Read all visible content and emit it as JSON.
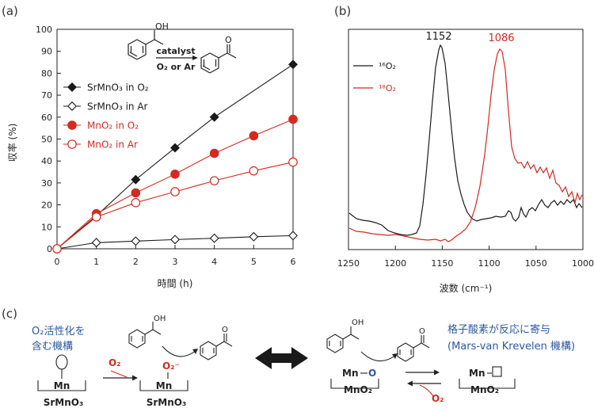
{
  "panel_labels": {
    "a": "(a)",
    "b": "(b)",
    "c": "(c)"
  },
  "colors": {
    "black": "#1a1a1a",
    "red": "#d42a20",
    "blue": "#2b57a6",
    "gray": "#7a7a7a"
  },
  "scheme_a": {
    "oh": "OH",
    "catalyst": "catalyst",
    "cond": "O₂ or Ar"
  },
  "scheme_c": {
    "left_caption": [
      "O₂活性化を",
      "含む機構"
    ],
    "right_caption": [
      "格子酸素が反応に寄与",
      "(Mars-van Krevelen 機構)"
    ],
    "mn": "Mn",
    "srmno3": "SrMnO₃",
    "mno2": "MnO₂",
    "o2": "O₂",
    "o2minus": "O₂⁻",
    "oh": "OH",
    "mn_o": "O"
  },
  "chart_data": [
    {
      "type": "line",
      "title": "",
      "xlabel": "時間 (h)",
      "ylabel": "収率 (%)",
      "xlim": [
        0,
        6
      ],
      "ylim": [
        0,
        100
      ],
      "x_ticks": [
        "0",
        "1",
        "2",
        "3",
        "4",
        "5",
        "6"
      ],
      "y_ticks": [
        "0",
        "10",
        "20",
        "30",
        "40",
        "50",
        "60",
        "70",
        "80",
        "90",
        "100"
      ],
      "x": [
        0,
        1,
        2,
        3,
        4,
        5,
        6
      ],
      "series": [
        {
          "name": "SrMnO₃ in O₂",
          "marker": "diamond-filled",
          "color": "#1a1a1a",
          "points": [
            [
              0,
              0
            ],
            [
              1,
              15
            ],
            [
              2,
              31.5
            ],
            [
              3,
              46
            ],
            [
              4,
              60
            ],
            [
              6,
              84
            ]
          ]
        },
        {
          "name": "SrMnO₃ in Ar",
          "marker": "diamond-open",
          "color": "#1a1a1a",
          "points": [
            [
              0,
              0
            ],
            [
              1,
              2.8
            ],
            [
              2,
              3.5
            ],
            [
              3,
              4.2
            ],
            [
              4,
              4.8
            ],
            [
              5,
              5.5
            ],
            [
              6,
              6
            ]
          ]
        },
        {
          "name": "MnO₂ in O₂",
          "marker": "circle-filled",
          "color": "#d42a20",
          "points": [
            [
              0,
              0
            ],
            [
              1,
              16
            ],
            [
              2,
              25.5
            ],
            [
              3,
              34
            ],
            [
              4,
              43.5
            ],
            [
              5,
              51.5
            ],
            [
              6,
              59
            ]
          ]
        },
        {
          "name": "MnO₂ in Ar",
          "marker": "circle-open",
          "color": "#d42a20",
          "points": [
            [
              0,
              0
            ],
            [
              1,
              14.5
            ],
            [
              2,
              21
            ],
            [
              3,
              26
            ],
            [
              4,
              31
            ],
            [
              5,
              35.5
            ],
            [
              6,
              39.5
            ]
          ]
        }
      ],
      "legend_position": "left"
    },
    {
      "type": "line",
      "title": "",
      "xlabel": "波数 (cm⁻¹)",
      "ylabel": "",
      "xlim": [
        1250,
        1000
      ],
      "x_ticks": [
        "1250",
        "1200",
        "1150",
        "1100",
        "1050",
        "1000"
      ],
      "series": [
        {
          "name": "¹⁶O₂",
          "color": "#1a1a1a",
          "peak": 1152,
          "peak_label": "1152"
        },
        {
          "name": "¹⁸O₂",
          "color": "#d42a20",
          "peak": 1086,
          "peak_label": "1086"
        }
      ],
      "legend_position": "top-left"
    }
  ]
}
